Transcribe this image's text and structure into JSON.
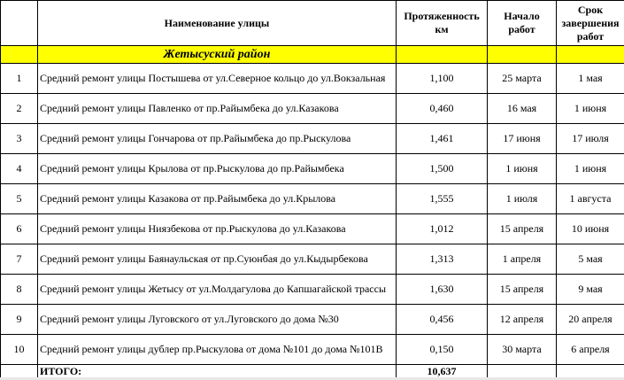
{
  "headers": {
    "number": "",
    "street": "Наименование улицы",
    "length": "Протяженность км",
    "start": "Начало работ",
    "end": "Срок завершения работ"
  },
  "district": "Жетысуский район",
  "rows": [
    {
      "n": "1",
      "street": "Средний ремонт улицы Постышева от ул.Северное кольцо до ул.Вокзальная",
      "length": "1,100",
      "start": "25 марта",
      "end": "1 мая"
    },
    {
      "n": "2",
      "street": "Средний ремонт улицы Павленко от пр.Райымбека до ул.Казакова",
      "length": "0,460",
      "start": "16 мая",
      "end": "1 июня"
    },
    {
      "n": "3",
      "street": "Средний ремонт улицы Гончарова от пр.Райымбека до пр.Рыскулова",
      "length": "1,461",
      "start": "17 июня",
      "end": "17 июля"
    },
    {
      "n": "4",
      "street": "Средний ремонт улицы Крылова от пр.Рыскулова до пр.Райымбека",
      "length": "1,500",
      "start": "1 июня",
      "end": "1 июня"
    },
    {
      "n": "5",
      "street": "Средний ремонт улицы Казакова от пр.Райымбека до ул.Крылова",
      "length": "1,555",
      "start": "1 июля",
      "end": "1 августа"
    },
    {
      "n": "6",
      "street": "Средний ремонт улицы Ниязбекова от пр.Рыскулова до ул.Казакова",
      "length": "1,012",
      "start": "15 апреля",
      "end": "10 июня"
    },
    {
      "n": "7",
      "street": "Средний ремонт улицы Баянаульская от пр.Суюнбая до ул.Кыдырбекова",
      "length": "1,313",
      "start": "1 апреля",
      "end": "5 мая"
    },
    {
      "n": "8",
      "street": "Средний ремонт улицы Жетысу от ул.Молдагулова до Капшагайской трассы",
      "length": "1,630",
      "start": "15 апреля",
      "end": "9 мая"
    },
    {
      "n": "9",
      "street": "Средний ремонт улицы Луговского от ул.Луговского до дома №30",
      "length": "0,456",
      "start": "12 апреля",
      "end": "20 апреля"
    },
    {
      "n": "10",
      "street": "Средний ремонт улицы дублер пр.Рыскулова от дома №101 до дома №101В",
      "length": "0,150",
      "start": "30 марта",
      "end": "6 апреля"
    }
  ],
  "total": {
    "label": "ИТОГО:",
    "length": "10,637"
  },
  "colors": {
    "district_bg": "#ffff00"
  }
}
